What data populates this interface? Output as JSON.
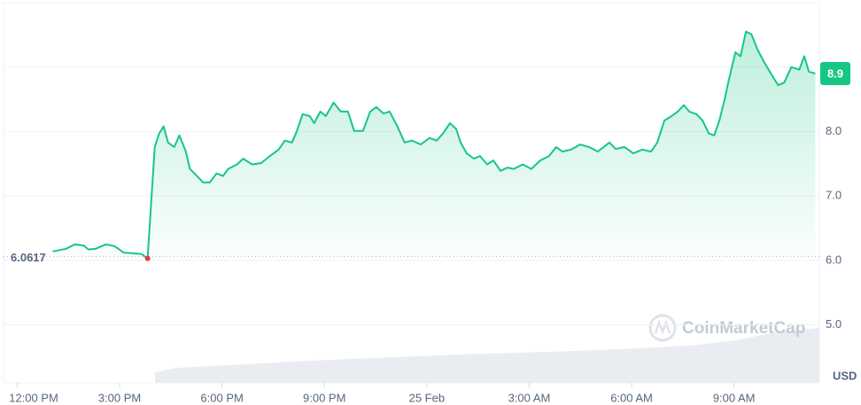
{
  "chart_data": {
    "type": "line",
    "x": [
      1.04,
      1.43,
      1.69,
      1.95,
      2.08,
      2.29,
      2.6,
      2.86,
      3.12,
      3.38,
      3.64,
      3.82,
      4.03,
      4.16,
      4.29,
      4.42,
      4.6,
      4.75,
      4.94,
      5.06,
      5.25,
      5.45,
      5.64,
      5.84,
      6.03,
      6.18,
      6.44,
      6.62,
      6.88,
      7.14,
      7.4,
      7.66,
      7.84,
      8.05,
      8.18,
      8.36,
      8.57,
      8.7,
      8.88,
      9.04,
      9.27,
      9.48,
      9.69,
      9.87,
      10.13,
      10.34,
      10.52,
      10.73,
      10.91,
      11.12,
      11.35,
      11.56,
      11.82,
      12.08,
      12.29,
      12.47,
      12.68,
      12.86,
      12.99,
      13.17,
      13.38,
      13.56,
      13.77,
      13.95,
      14.16,
      14.36,
      14.55,
      14.81,
      15.06,
      15.32,
      15.58,
      15.79,
      15.97,
      16.23,
      16.49,
      16.75,
      17.01,
      17.35,
      17.53,
      17.79,
      18.05,
      18.31,
      18.57,
      18.75,
      18.96,
      19.17,
      19.35,
      19.53,
      19.69,
      19.9,
      20.08,
      20.26,
      20.42,
      20.57,
      20.73,
      20.83,
      21.04,
      21.19,
      21.35,
      21.51,
      21.69,
      21.87,
      22.08,
      22.29,
      22.47,
      22.68,
      22.91,
      23.06,
      23.19,
      23.38
    ],
    "series": [
      {
        "color": "#16c784",
        "values": [
          6.14,
          6.18,
          6.25,
          6.23,
          6.17,
          6.18,
          6.25,
          6.22,
          6.12,
          6.11,
          6.1,
          6.03,
          7.76,
          7.97,
          8.08,
          7.83,
          7.76,
          7.94,
          7.69,
          7.42,
          7.32,
          7.21,
          7.21,
          7.35,
          7.31,
          7.42,
          7.49,
          7.58,
          7.49,
          7.51,
          7.62,
          7.72,
          7.86,
          7.83,
          7.99,
          8.27,
          8.24,
          8.13,
          8.31,
          8.24,
          8.45,
          8.31,
          8.31,
          8.01,
          8.01,
          8.31,
          8.38,
          8.28,
          8.31,
          8.1,
          7.83,
          7.86,
          7.8,
          7.9,
          7.86,
          7.97,
          8.13,
          8.04,
          7.83,
          7.66,
          7.58,
          7.62,
          7.49,
          7.55,
          7.39,
          7.44,
          7.42,
          7.49,
          7.42,
          7.55,
          7.62,
          7.76,
          7.69,
          7.72,
          7.8,
          7.76,
          7.69,
          7.83,
          7.73,
          7.76,
          7.66,
          7.72,
          7.69,
          7.83,
          8.17,
          8.24,
          8.31,
          8.41,
          8.31,
          8.27,
          8.17,
          7.97,
          7.94,
          8.17,
          8.51,
          8.76,
          9.23,
          9.17,
          9.55,
          9.51,
          9.27,
          9.09,
          8.9,
          8.72,
          8.76,
          9.0,
          8.96,
          9.17,
          8.93,
          8.9
        ]
      }
    ],
    "xlim": [
      -0.4,
      23.5
    ],
    "xticks": [
      {
        "value": 0,
        "label": "12:00 PM"
      },
      {
        "value": 3,
        "label": "3:00 PM"
      },
      {
        "value": 6,
        "label": "6:00 PM"
      },
      {
        "value": 9,
        "label": "9:00 PM"
      },
      {
        "value": 12,
        "label": "25 Feb"
      },
      {
        "value": 15,
        "label": "3:00 AM"
      },
      {
        "value": 18,
        "label": "6:00 AM"
      },
      {
        "value": 21,
        "label": "9:00 AM"
      }
    ],
    "ylim": [
      4.1,
      10.0
    ],
    "yticks": [
      {
        "value": 5,
        "label": "5.0"
      },
      {
        "value": 6,
        "label": "6.0"
      },
      {
        "value": 7,
        "label": "7.0"
      },
      {
        "value": 8,
        "label": "8.0"
      },
      {
        "value": 9,
        "label": null
      }
    ],
    "grid": true,
    "open_price": 6.0617,
    "current_price": 8.9,
    "currency": "USD",
    "watermark": "CoinMarketCap",
    "low_color": "#ea3943"
  }
}
